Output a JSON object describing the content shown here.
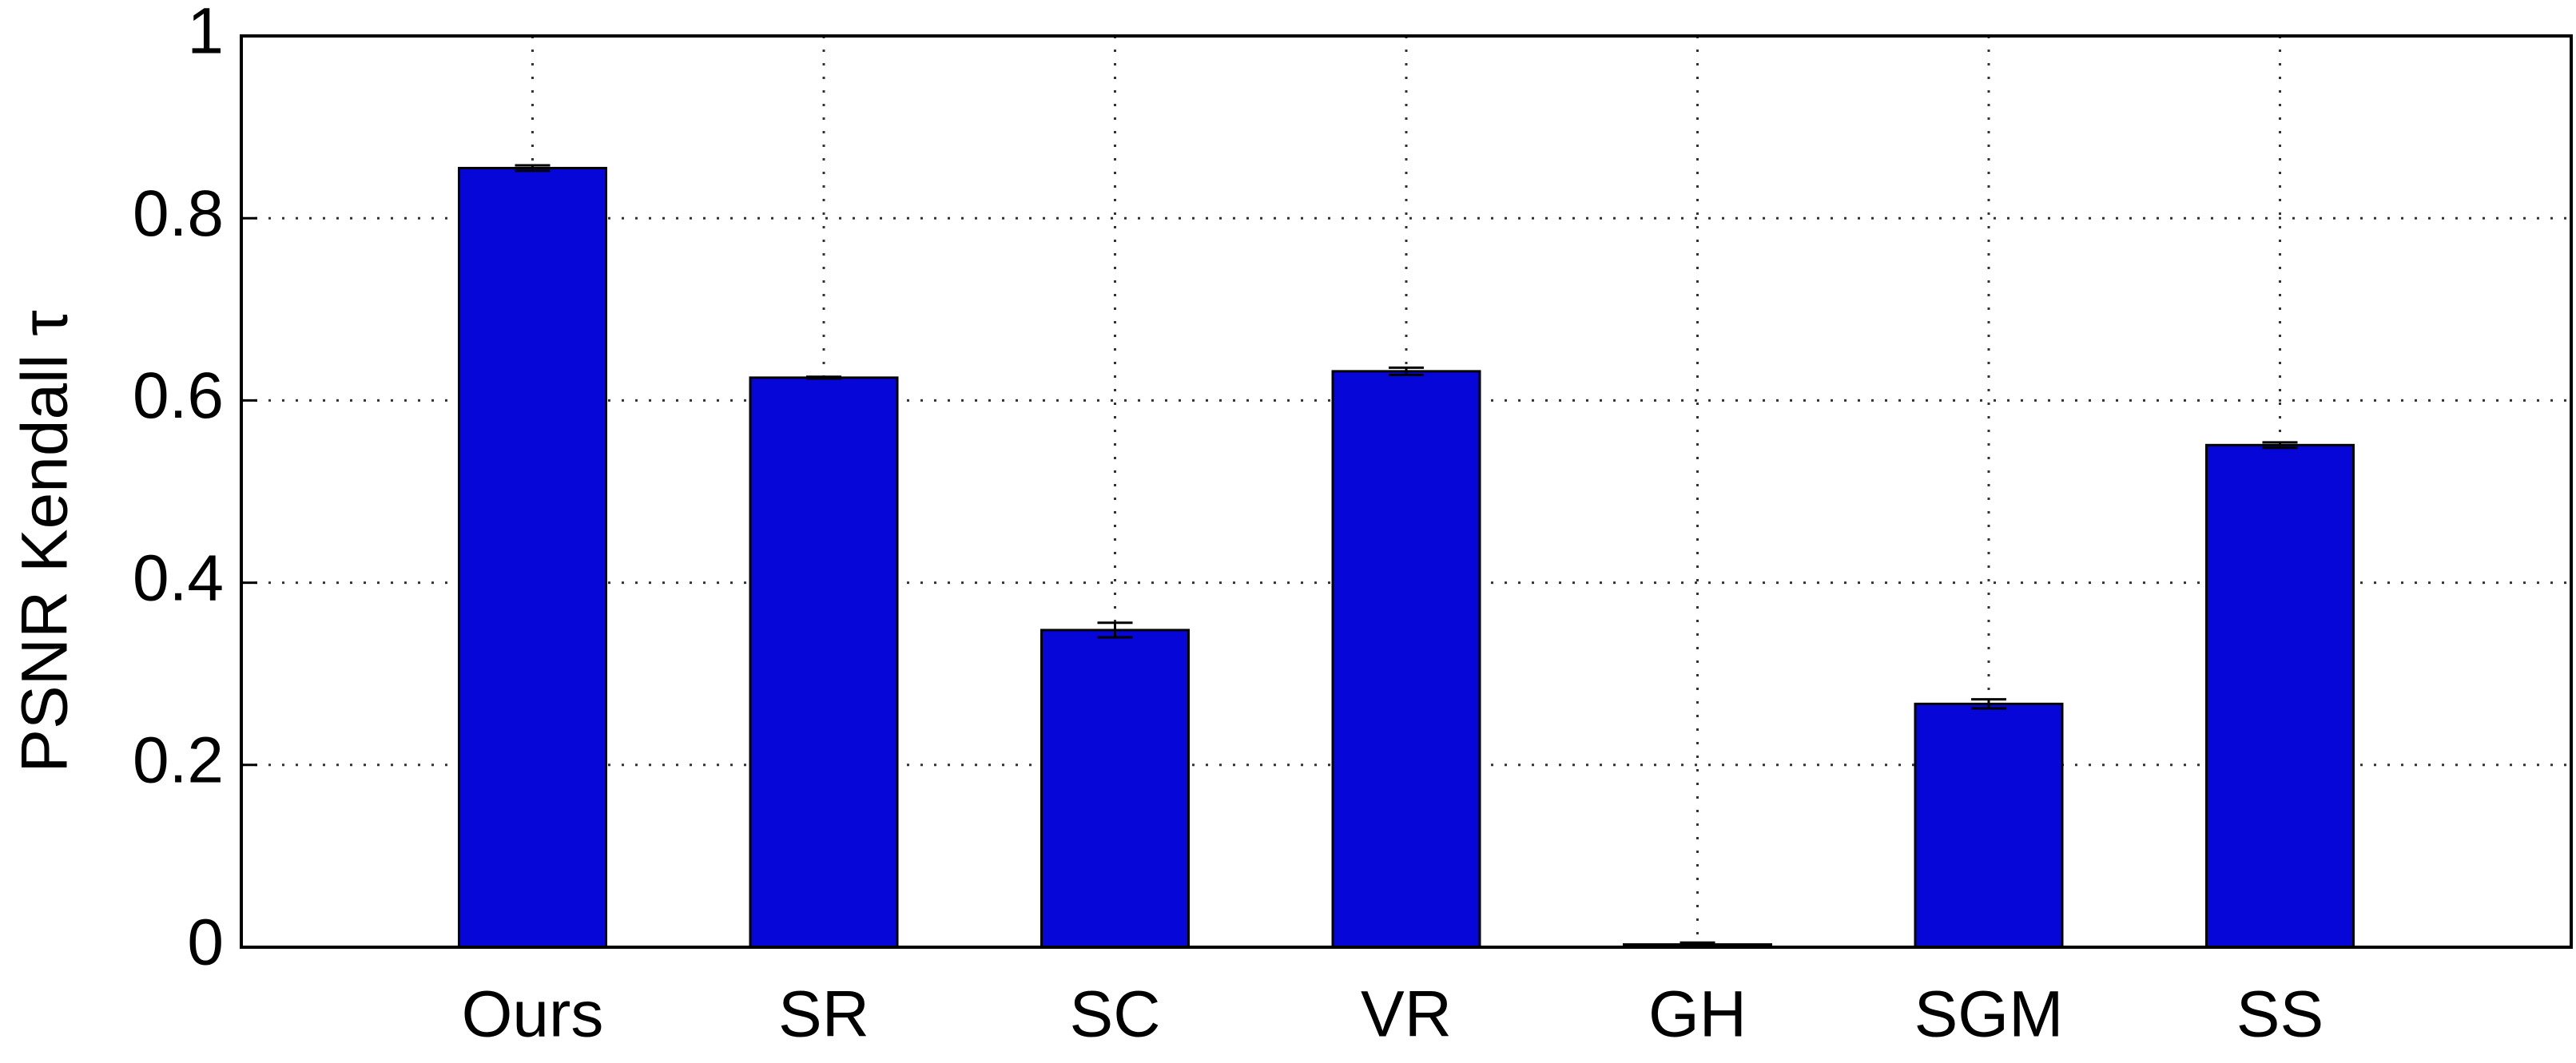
{
  "chart_data": {
    "type": "bar",
    "ylabel": "PSNR Kendall τ",
    "categories": [
      "Ours",
      "SR",
      "SC",
      "VR",
      "GH",
      "SGM",
      "SS"
    ],
    "values": [
      0.855,
      0.625,
      0.348,
      0.632,
      0.003,
      0.267,
      0.551
    ],
    "errors": [
      0.003,
      0.001,
      0.008,
      0.004,
      0.002,
      0.005,
      0.003
    ],
    "color": "#0606d8",
    "ylim": [
      0,
      1
    ],
    "yticks": [
      0,
      0.2,
      0.4,
      0.6,
      0.8,
      1
    ],
    "grid": true
  }
}
